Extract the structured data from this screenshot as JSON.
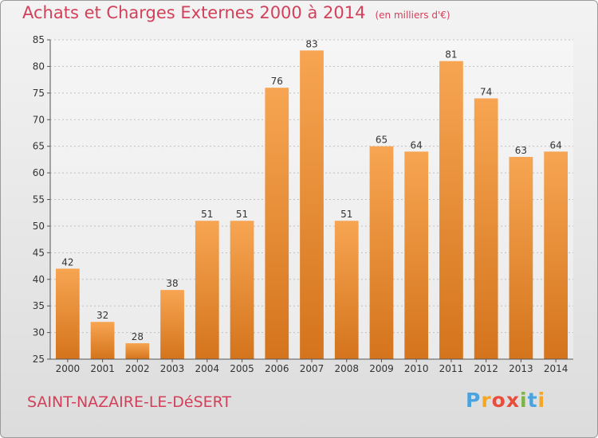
{
  "title": "Achats et Charges Externes 2000 à 2014",
  "unit_label": "(en milliers d'€)",
  "place_name": "SAINT-NAZAIRE-LE-DéSERT",
  "logo_letters": [
    "P",
    "r",
    "o",
    "x",
    "i",
    "t",
    "i"
  ],
  "colors": {
    "title": "#d2405a",
    "bar_top": "#f7a552",
    "bar_bottom": "#d4741c",
    "axis": "#555555",
    "grid": "#bfbfbf",
    "logo": [
      "#4aa3df",
      "#f5a623",
      "#e94e3c",
      "#e94e3c",
      "#7cb342",
      "#4aa3df",
      "#f5a623"
    ]
  },
  "chart_data": {
    "type": "bar",
    "categories": [
      "2000",
      "2001",
      "2002",
      "2003",
      "2004",
      "2005",
      "2006",
      "2007",
      "2008",
      "2009",
      "2010",
      "2011",
      "2012",
      "2013",
      "2014"
    ],
    "values": [
      42,
      32,
      28,
      38,
      51,
      51,
      76,
      83,
      51,
      65,
      64,
      81,
      74,
      63,
      64
    ],
    "ylim": [
      25,
      85
    ],
    "yticks": [
      25,
      30,
      35,
      40,
      45,
      50,
      55,
      60,
      65,
      70,
      75,
      80,
      85
    ],
    "grid": true,
    "grid_style": "dotted horizontal",
    "xlabel": "",
    "ylabel": ""
  }
}
